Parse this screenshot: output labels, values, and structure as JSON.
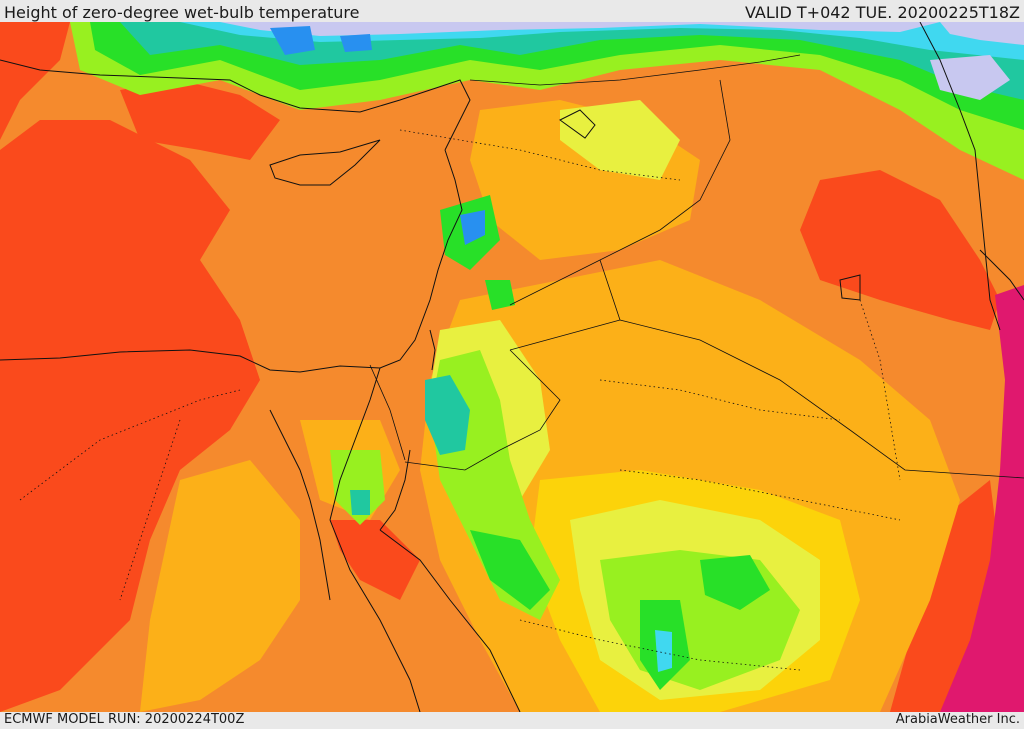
{
  "header": {
    "title": "Height of zero-degree wet-bulb temperature",
    "valid": "VALID T+042 TUE. 20200225T18Z"
  },
  "footer": {
    "model_run": "ECMWF MODEL RUN: 20200224T00Z",
    "credit": "ArabiaWeather Inc."
  },
  "palette": {
    "deep_orange": "#fa4a1c",
    "orange": "#f58a2d",
    "light_orange": "#fcb018",
    "yellow": "#fcd30a",
    "pale_yellow": "#e8f040",
    "lime": "#98f020",
    "green": "#28e028",
    "teal": "#20c8a0",
    "cyan": "#40d8f0",
    "blue": "#2890f0",
    "lavender": "#c8c8f0",
    "magenta": "#e0186e"
  }
}
